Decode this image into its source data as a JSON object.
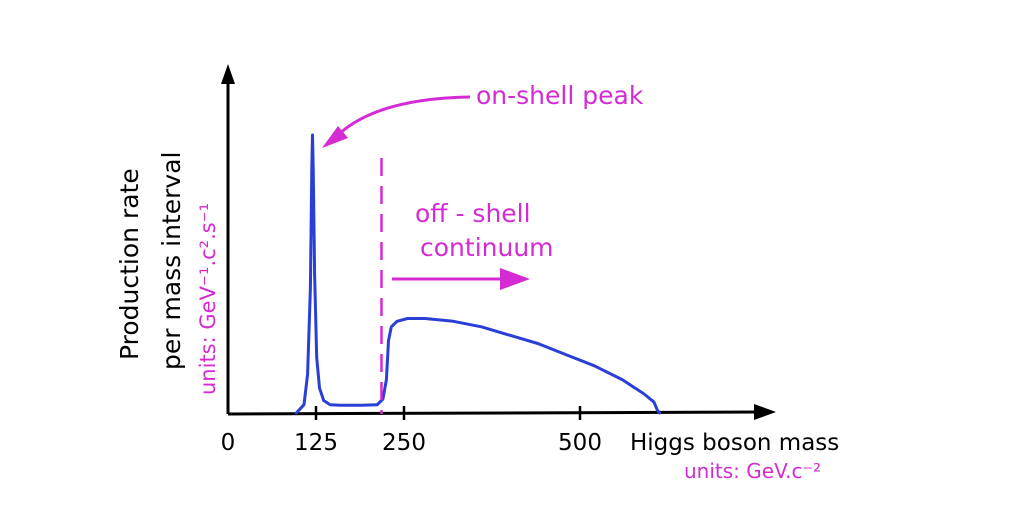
{
  "chart_data": {
    "type": "line",
    "ylabel": [
      "Production rate",
      "per mass interval"
    ],
    "ylabel_units": "units: GeV⁻¹.c².s⁻¹",
    "xlabel": "Higgs boson mass",
    "xlabel_units": "units: GeV.c⁻²",
    "x_ticks": [
      {
        "value": 0,
        "label": "0"
      },
      {
        "value": 125,
        "label": "125"
      },
      {
        "value": 250,
        "label": "250"
      },
      {
        "value": 500,
        "label": "500"
      }
    ],
    "xlim": [
      0,
      640
    ],
    "ylim": [
      0,
      1
    ],
    "series": [
      {
        "color": "#2a3fd6",
        "x": [
          97,
          108,
          113,
          117,
          119,
          120,
          121,
          123,
          126,
          130,
          136,
          145,
          160,
          190,
          212,
          220,
          225,
          228,
          232,
          240,
          255,
          280,
          320,
          360,
          400,
          440,
          480,
          520,
          560,
          590,
          605,
          610,
          613
        ],
        "y": [
          0,
          0.03,
          0.14,
          0.45,
          0.88,
          1.0,
          0.88,
          0.5,
          0.2,
          0.09,
          0.045,
          0.03,
          0.028,
          0.028,
          0.03,
          0.05,
          0.12,
          0.26,
          0.31,
          0.33,
          0.34,
          0.34,
          0.33,
          0.31,
          0.28,
          0.25,
          0.21,
          0.17,
          0.12,
          0.07,
          0.04,
          0.01,
          0
        ]
      }
    ],
    "separator_x": 218,
    "annotations": {
      "peak": "on-shell peak",
      "continuum": [
        "off - shell",
        "continuum"
      ]
    },
    "colors": {
      "curve": "#2a3fd6",
      "annotation": "#d42bd4",
      "ink": "#000000"
    }
  }
}
